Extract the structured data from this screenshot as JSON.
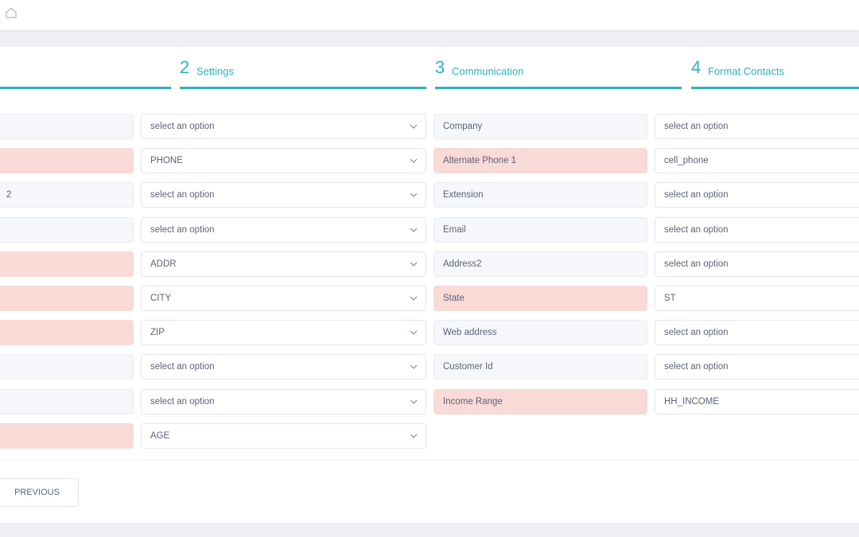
{
  "steps": [
    {
      "num": "2",
      "label": "Settings"
    },
    {
      "num": "3",
      "label": "Communication"
    },
    {
      "num": "4",
      "label": "Format Contacts"
    }
  ],
  "left_mapping": [
    {
      "label": "",
      "required": false,
      "value": "select an option"
    },
    {
      "label": "",
      "required": true,
      "value": "PHONE"
    },
    {
      "label": "2",
      "required": false,
      "value": "select an option"
    },
    {
      "label": "",
      "required": false,
      "value": "select an option"
    },
    {
      "label": "",
      "required": true,
      "value": "ADDR"
    },
    {
      "label": "",
      "required": true,
      "value": "CITY"
    },
    {
      "label": "",
      "required": true,
      "value": "ZIP"
    },
    {
      "label": "",
      "required": false,
      "value": "select an option"
    },
    {
      "label": "",
      "required": false,
      "value": "select an option"
    },
    {
      "label": "",
      "required": true,
      "value": "AGE"
    }
  ],
  "right_mapping": [
    {
      "label": "Company",
      "required": false,
      "value": "select an option"
    },
    {
      "label": "Alternate Phone 1",
      "required": true,
      "value": "cell_phone"
    },
    {
      "label": "Extension",
      "required": false,
      "value": "select an option"
    },
    {
      "label": "Email",
      "required": false,
      "value": "select an option"
    },
    {
      "label": "Address2",
      "required": false,
      "value": "select an option"
    },
    {
      "label": "State",
      "required": true,
      "value": "ST"
    },
    {
      "label": "Web address",
      "required": false,
      "value": "select an option"
    },
    {
      "label": "Customer Id",
      "required": false,
      "value": "select an option"
    },
    {
      "label": "Income Range",
      "required": true,
      "value": "HH_INCOME"
    }
  ],
  "previous_label": "PREVIOUS",
  "colors": {
    "accent": "#2cb2bd",
    "required_bg": "#f8dad6",
    "field_bg": "#f5f7fa"
  }
}
